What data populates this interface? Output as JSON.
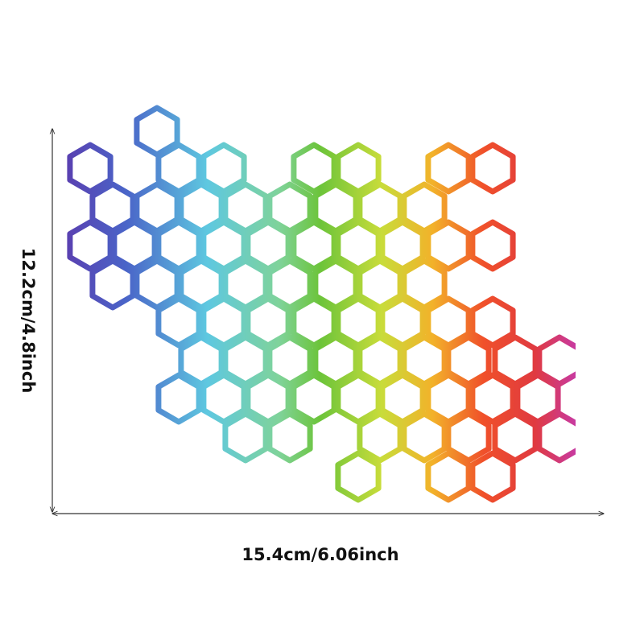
{
  "dimensions": {
    "height_label": "12.2cm/4.8inch",
    "width_label": "15.4cm/6.06inch"
  }
}
